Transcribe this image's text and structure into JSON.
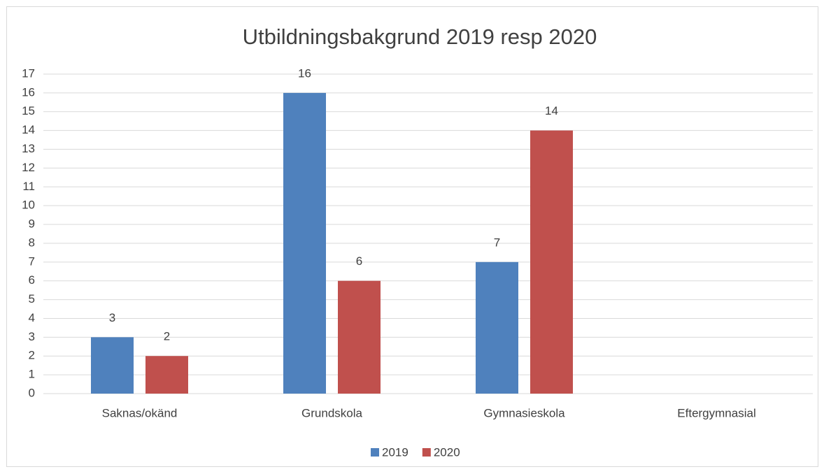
{
  "chart_data": {
    "type": "bar",
    "title": "Utbildningsbakgrund 2019 resp 2020",
    "categories": [
      "Saknas/okänd",
      "Grundskola",
      "Gymnasieskola",
      "Eftergymnasial"
    ],
    "series": [
      {
        "name": "2019",
        "color": "#4f81bd",
        "values": [
          3,
          16,
          7,
          null
        ]
      },
      {
        "name": "2020",
        "color": "#c0504d",
        "values": [
          2,
          6,
          14,
          null
        ]
      }
    ],
    "ylim": [
      0,
      17
    ],
    "yticks": [
      0,
      1,
      2,
      3,
      4,
      5,
      6,
      7,
      8,
      9,
      10,
      11,
      12,
      13,
      14,
      15,
      16,
      17
    ],
    "grid": true,
    "legend": "bottom"
  }
}
